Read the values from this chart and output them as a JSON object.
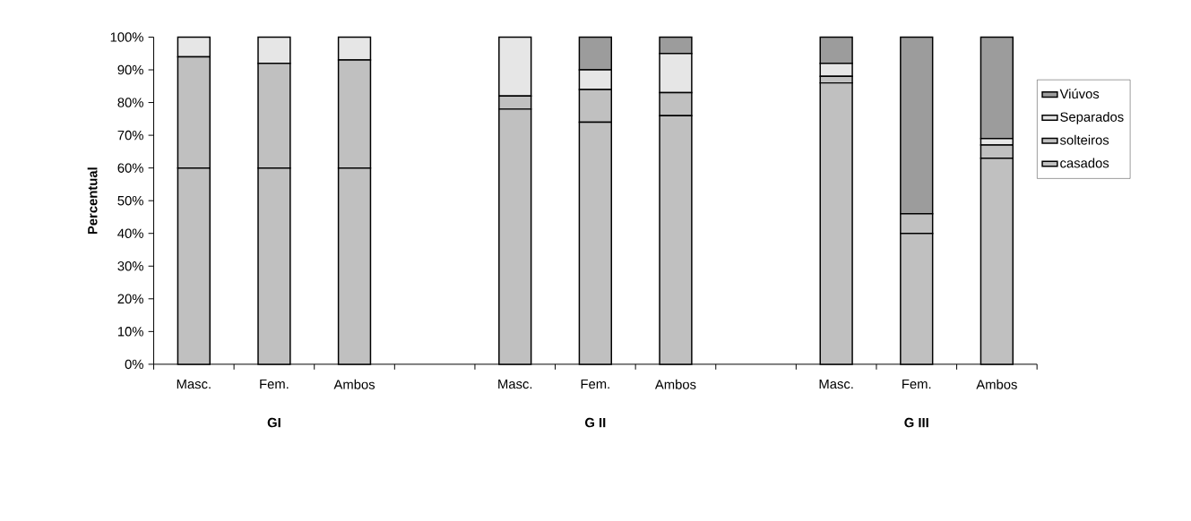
{
  "chart_data": {
    "type": "bar",
    "stacked": true,
    "ylabel": "Percentual",
    "categories": [
      "Masc.",
      "Fem.",
      "Ambos",
      null,
      "Masc.",
      "Fem.",
      "Ambos",
      null,
      "Masc.",
      "Fem.",
      "Ambos"
    ],
    "series": [
      {
        "name": "casados",
        "color": "#c0c0c0",
        "values": [
          60,
          60,
          60,
          null,
          78,
          74,
          76,
          null,
          86,
          40,
          63
        ]
      },
      {
        "name": "solteiros",
        "color": "#c0c0c0",
        "values": [
          34,
          32,
          33,
          null,
          4,
          10,
          7,
          null,
          2,
          6,
          4
        ]
      },
      {
        "name": "Separados",
        "color": "#e6e6e6",
        "values": [
          6,
          8,
          7,
          null,
          18,
          6,
          12,
          null,
          4,
          0,
          2
        ]
      },
      {
        "name": "Viúvos",
        "color": "#9c9c9c",
        "values": [
          0,
          0,
          0,
          null,
          0,
          10,
          5,
          null,
          8,
          54,
          31
        ]
      }
    ],
    "ylim": [
      0,
      100
    ],
    "yticks": [
      {
        "value": 0,
        "label": "0%"
      },
      {
        "value": 10,
        "label": "10%"
      },
      {
        "value": 20,
        "label": "20%"
      },
      {
        "value": 30,
        "label": "30%"
      },
      {
        "value": 40,
        "label": "40%"
      },
      {
        "value": 50,
        "label": "50%"
      },
      {
        "value": 60,
        "label": "60%"
      },
      {
        "value": 70,
        "label": "70%"
      },
      {
        "value": 80,
        "label": "80%"
      },
      {
        "value": 90,
        "label": "90%"
      },
      {
        "value": 100,
        "label": "100%"
      }
    ],
    "annotations": [
      "**GI**",
      "**G II**",
      "**G III**"
    ],
    "legend": "right",
    "grid": false
  }
}
